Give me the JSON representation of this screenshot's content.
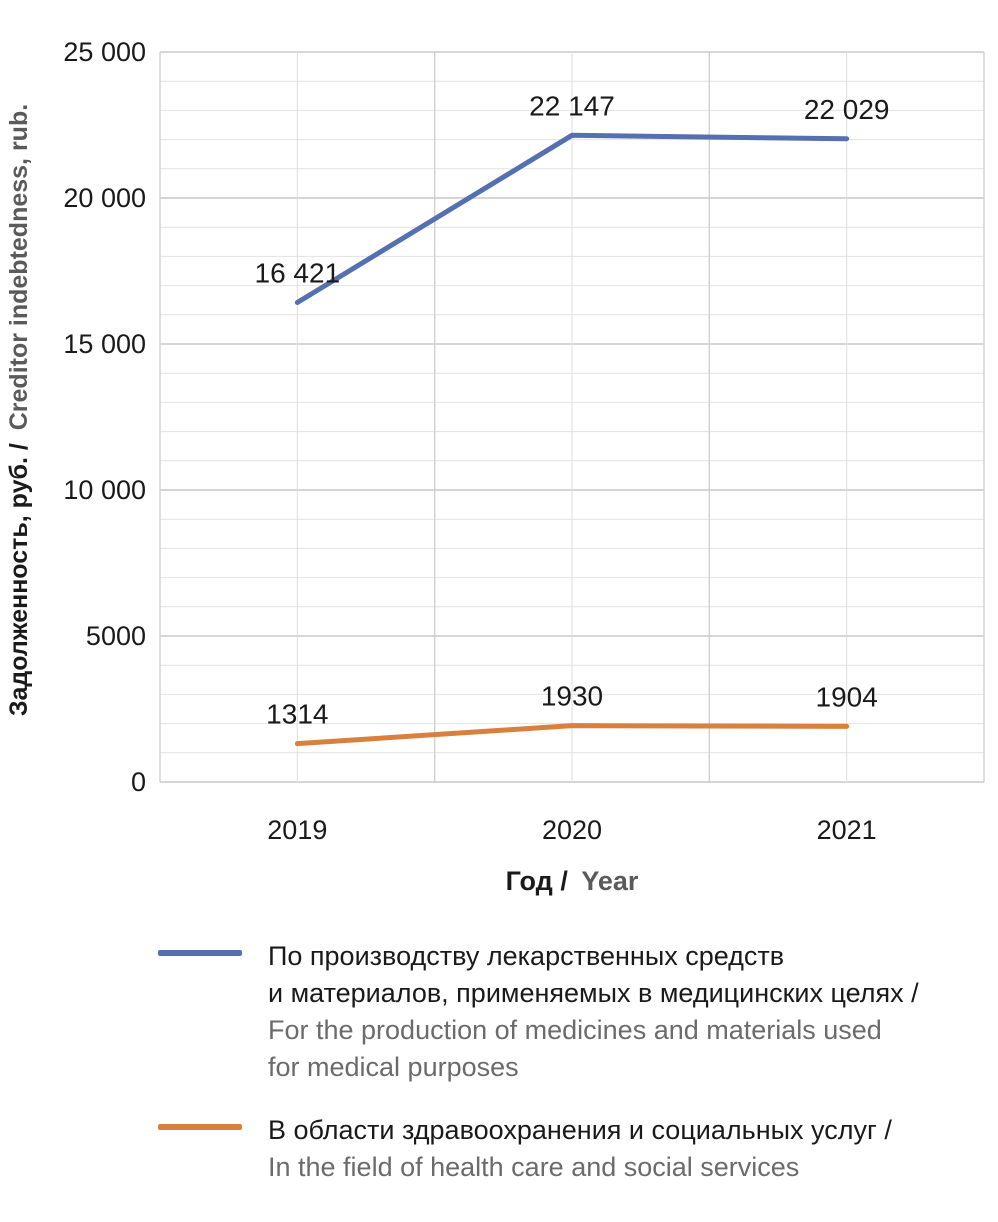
{
  "chart_data": {
    "type": "line",
    "categories": [
      "2019",
      "2020",
      "2021"
    ],
    "y_tick_labels": [
      "0",
      "5000",
      "10 000",
      "15 000",
      "20 000",
      "25 000"
    ],
    "y_ticks": [
      0,
      5000,
      10000,
      15000,
      20000,
      25000
    ],
    "ylim": [
      0,
      25000
    ],
    "grid": true,
    "xlabel_ru": "Год /",
    "xlabel_en": "Year",
    "ylabel_ru": "Задолженность, руб. /",
    "ylabel_en": "Creditor indebtedness, rub.",
    "legend_position": "bottom",
    "series": [
      {
        "name_ru_line1": "По производству лекарственных средств",
        "name_ru_line2": "и материалов, применяемых в медицинских целях /",
        "name_en_line1": "For the production of medicines and materials used",
        "name_en_line2": "for medical purposes",
        "color": "#5470b1",
        "values": [
          16421,
          22147,
          22029
        ],
        "data_labels": [
          "16 421",
          "22 147",
          "22 029"
        ]
      },
      {
        "name_ru_line1": "В области здравоохранения и социальных услуг /",
        "name_en_line1": "In the field of health care and social services",
        "color": "#d9803e",
        "values": [
          1314,
          1930,
          1904
        ],
        "data_labels": [
          "1314",
          "1930",
          "1904"
        ]
      }
    ]
  }
}
